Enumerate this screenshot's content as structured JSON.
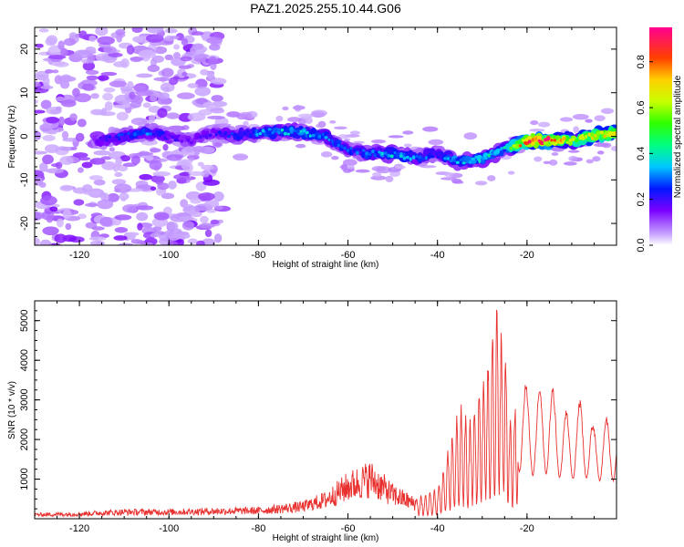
{
  "chart_data": [
    {
      "type": "heatmap",
      "title": "PAZ1.2025.255.10.44.G06",
      "xlabel": "Height of straight line (km)",
      "ylabel": "Frequency (Hz)",
      "xlim": [
        -130,
        0
      ],
      "ylim": [
        -25,
        25
      ],
      "xticks": [
        -120,
        -100,
        -80,
        -60,
        -40,
        -20
      ],
      "yticks": [
        -20,
        -10,
        0,
        10,
        20
      ],
      "colorbar": {
        "label": "Normalized spectral amplitude",
        "range": [
          0,
          0.95
        ],
        "ticks": [
          0.0,
          0.2,
          0.4,
          0.6,
          0.8
        ]
      },
      "ridge": {
        "x": [
          -115,
          -110,
          -105,
          -100,
          -95,
          -90,
          -85,
          -80,
          -75,
          -70,
          -65,
          -60,
          -55,
          -50,
          -45,
          -40,
          -35,
          -30,
          -25,
          -20,
          -15,
          -10,
          -5,
          0
        ],
        "freq": [
          -1,
          0,
          1,
          0,
          -1,
          1,
          0,
          1,
          1,
          1,
          0,
          -3,
          -4,
          -4,
          -5,
          -4,
          -6,
          -5,
          -3,
          -1,
          -1,
          -1,
          0,
          1
        ],
        "amplitude": [
          0.2,
          0.25,
          0.3,
          0.2,
          0.15,
          0.2,
          0.25,
          0.3,
          0.35,
          0.35,
          0.3,
          0.25,
          0.3,
          0.35,
          0.3,
          0.25,
          0.35,
          0.4,
          0.35,
          0.9,
          0.85,
          0.6,
          0.7,
          0.75
        ]
      },
      "noise_region_x": [
        -130,
        -88
      ]
    },
    {
      "type": "line",
      "xlabel": "Height of straight line (km)",
      "ylabel": "SNR (10 * v/v)",
      "xlim": [
        -130,
        0
      ],
      "ylim": [
        0,
        5500
      ],
      "xticks": [
        -120,
        -100,
        -80,
        -60,
        -40,
        -20
      ],
      "yticks": [
        1000,
        2000,
        3000,
        4000,
        5000
      ],
      "series": [
        {
          "name": "SNR",
          "color": "#e8312f",
          "anchors_x": [
            -130,
            -120,
            -110,
            -100,
            -90,
            -80,
            -70,
            -65,
            -60,
            -55,
            -50,
            -45,
            -40,
            -37,
            -35,
            -33,
            -30,
            -28,
            -27,
            -26,
            -25,
            -24,
            -22,
            -20,
            -18,
            -15,
            -12,
            -10,
            -8,
            -5,
            -3,
            0
          ],
          "anchors_envelope": [
            150,
            180,
            250,
            250,
            280,
            300,
            450,
            700,
            1200,
            1500,
            900,
            550,
            800,
            2000,
            3000,
            2500,
            3500,
            4500,
            5500,
            5100,
            4600,
            2500,
            3200,
            2800,
            2600,
            2900,
            2200,
            2100,
            2500,
            1800,
            2000,
            1900
          ]
        }
      ]
    }
  ]
}
